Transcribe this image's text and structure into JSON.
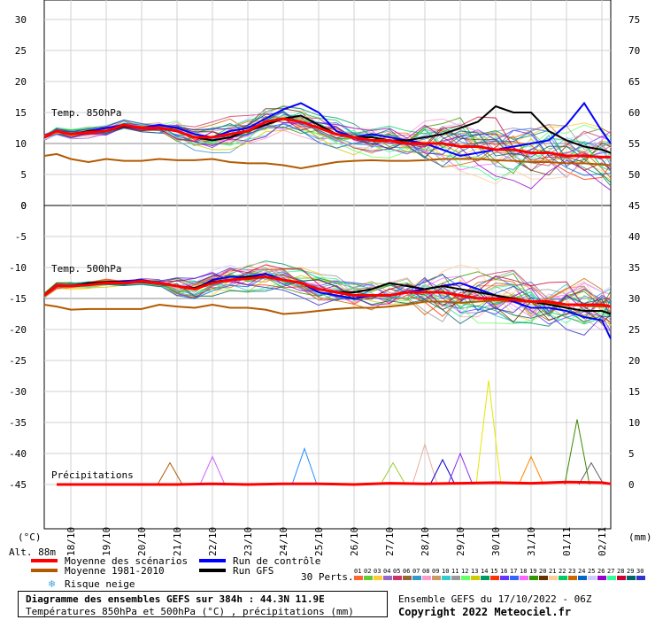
{
  "chart_data": {
    "type": "line",
    "title": "Diagramme des ensembles GEFS sur 384h : 44.3N 11.9E",
    "subtitle": "Températures 850hPa et 500hPa (°C) , précipitations (mm)",
    "run_info": "Ensemble GEFS du 17/10/2022 - 06Z",
    "copyright": "Copyright 2022 Meteociel.fr",
    "altitude": "Alt. 88m",
    "left_unit": "(°C)",
    "right_unit": "(mm)",
    "x_dates": [
      "18/10",
      "19/10",
      "20/10",
      "21/10",
      "22/10",
      "23/10",
      "24/10",
      "25/10",
      "26/10",
      "27/10",
      "28/10",
      "29/10",
      "30/10",
      "31/10",
      "01/11",
      "02/11"
    ],
    "x_range_days": [
      17.25,
      33.25
    ],
    "panels": [
      {
        "name": "Temp. 850hPa",
        "yticks_left": [
          "30",
          "25",
          "20",
          "15",
          "10",
          "5",
          "0"
        ],
        "yticks_right": [
          "75",
          "70",
          "65",
          "60",
          "55",
          "50",
          "45"
        ],
        "ylim": [
          0,
          30
        ],
        "series": [
          {
            "name": "Moyenne des scénarios",
            "color": "#ff0000",
            "x": [
              17.25,
              17.6,
              18.0,
              18.5,
              19.0,
              19.5,
              20.0,
              20.5,
              21.0,
              21.5,
              22.0,
              22.5,
              23.0,
              23.5,
              24.0,
              24.5,
              25.0,
              25.5,
              26.0,
              26.5,
              27.0,
              27.5,
              28.0,
              28.5,
              29.0,
              29.5,
              30.0,
              30.5,
              31.0,
              31.5,
              32.0,
              32.5,
              33.0,
              33.25
            ],
            "y": [
              11,
              12,
              11.5,
              11.8,
              12,
              13,
              12.5,
              12.5,
              12,
              11,
              11,
              11.5,
              12,
              13.5,
              14,
              13.5,
              12.5,
              11.5,
              11,
              10.5,
              10.5,
              10,
              10,
              10,
              9.5,
              9.5,
              9,
              9,
              8.5,
              8.5,
              8,
              8,
              7.8,
              7.8
            ]
          },
          {
            "name": "Moyenne 1981-2010",
            "color": "#b35a00",
            "x": [
              17.25,
              17.6,
              18.0,
              18.5,
              19.0,
              19.5,
              20.0,
              20.5,
              21.0,
              21.5,
              22.0,
              22.5,
              23.0,
              23.5,
              24.0,
              24.5,
              25.0,
              25.5,
              26.0,
              26.5,
              27.0,
              27.5,
              28.0,
              28.5,
              29.0,
              29.5,
              30.0,
              30.5,
              31.0,
              31.5,
              32.0,
              32.5,
              33.0,
              33.25
            ],
            "y": [
              8,
              8.3,
              7.5,
              7,
              7.5,
              7.2,
              7.2,
              7.5,
              7.3,
              7.3,
              7.5,
              7,
              6.8,
              6.8,
              6.5,
              6,
              6.5,
              7,
              7.2,
              7.3,
              7.2,
              7.2,
              7.3,
              7.5,
              7.5,
              7.5,
              7.3,
              7.2,
              7,
              7,
              6.8,
              6.8,
              6.6,
              6.5
            ]
          },
          {
            "name": "Run de contrôle",
            "color": "#0000ff",
            "x": [
              17.25,
              17.6,
              18.0,
              18.5,
              19.0,
              19.5,
              20.0,
              20.5,
              21.0,
              21.5,
              22.0,
              22.5,
              23.0,
              23.5,
              24.0,
              24.5,
              25.0,
              25.5,
              26.0,
              26.5,
              27.0,
              27.5,
              28.0,
              28.5,
              29.0,
              29.5,
              30.0,
              30.5,
              31.0,
              31.5,
              32.0,
              32.5,
              33.0,
              33.25
            ],
            "y": [
              11,
              12,
              11.5,
              12,
              12.5,
              13,
              12.5,
              13,
              12.5,
              11.5,
              11,
              12,
              12.5,
              14,
              15.5,
              16.5,
              15,
              12,
              11,
              11.5,
              11,
              10.5,
              10,
              9,
              8,
              8.5,
              9,
              9.5,
              10,
              10.5,
              13,
              16.5,
              12,
              10
            ]
          },
          {
            "name": "Run GFS",
            "color": "#000000",
            "x": [
              17.25,
              17.6,
              18.0,
              18.5,
              19.0,
              19.5,
              20.0,
              20.5,
              21.0,
              21.5,
              22.0,
              22.5,
              23.0,
              23.5,
              24.0,
              24.5,
              25.0,
              25.5,
              26.0,
              26.5,
              27.0,
              27.5,
              28.0,
              28.5,
              29.0,
              29.5,
              30.0,
              30.5,
              31.0,
              31.5,
              32.0,
              32.5,
              33.0,
              33.25
            ],
            "y": [
              11,
              12,
              11.5,
              12,
              12,
              12.8,
              12.5,
              12.5,
              12,
              11,
              10.5,
              11,
              12,
              13,
              14,
              14.5,
              13,
              11.5,
              11,
              11,
              10.5,
              10.5,
              11,
              11.5,
              12.5,
              13.5,
              16,
              15,
              15,
              12,
              10.5,
              9.5,
              9,
              8.5
            ]
          }
        ]
      },
      {
        "name": "Temp. 500hPa",
        "yticks_left": [
          "-5",
          "-10",
          "-15",
          "-20",
          "-25"
        ],
        "yticks_right": [
          "40",
          "35",
          "30",
          "25",
          "20"
        ],
        "ylim": [
          -25,
          0
        ],
        "series": [
          {
            "name": "Moyenne des scénarios",
            "color": "#ff0000",
            "x": [
              17.25,
              17.6,
              18.0,
              18.5,
              19.0,
              19.5,
              20.0,
              20.5,
              21.0,
              21.5,
              22.0,
              22.5,
              23.0,
              23.5,
              24.0,
              24.5,
              25.0,
              25.5,
              26.0,
              26.5,
              27.0,
              27.5,
              28.0,
              28.5,
              29.0,
              29.5,
              30.0,
              30.5,
              31.0,
              31.5,
              32.0,
              32.5,
              33.0,
              33.25
            ],
            "y": [
              -14.5,
              -13,
              -13,
              -12.8,
              -12.5,
              -12.5,
              -12.2,
              -12.5,
              -13,
              -13.5,
              -12.5,
              -12,
              -11.8,
              -11.5,
              -12,
              -12.5,
              -13.5,
              -14,
              -14.5,
              -14.5,
              -14.5,
              -14,
              -14,
              -14,
              -14.5,
              -15,
              -15,
              -15.2,
              -15.5,
              -15.5,
              -16,
              -16,
              -16,
              -16.3
            ]
          },
          {
            "name": "Moyenne 1981-2010",
            "color": "#b35a00",
            "x": [
              17.25,
              17.6,
              18.0,
              18.5,
              19.0,
              19.5,
              20.0,
              20.5,
              21.0,
              21.5,
              22.0,
              22.5,
              23.0,
              23.5,
              24.0,
              24.5,
              25.0,
              25.5,
              26.0,
              26.5,
              27.0,
              27.5,
              28.0,
              28.5,
              29.0,
              29.5,
              30.0,
              30.5,
              31.0,
              31.5,
              32.0,
              32.5,
              33.0,
              33.25
            ],
            "y": [
              -16,
              -16.3,
              -16.8,
              -16.7,
              -16.7,
              -16.7,
              -16.7,
              -16,
              -16.3,
              -16.5,
              -16,
              -16.5,
              -16.5,
              -16.8,
              -17.5,
              -17.3,
              -17,
              -16.7,
              -16.5,
              -16.5,
              -16.3,
              -16,
              -15.5,
              -15.5,
              -15.7,
              -15.5,
              -15.3,
              -15.5,
              -15.5,
              -15.8,
              -16,
              -16.2,
              -16.3,
              -16.3
            ]
          },
          {
            "name": "Run de contrôle",
            "color": "#0000ff",
            "x": [
              17.25,
              17.6,
              18.0,
              18.5,
              19.0,
              19.5,
              20.0,
              20.5,
              21.0,
              21.5,
              22.0,
              22.5,
              23.0,
              23.5,
              24.0,
              24.5,
              25.0,
              25.5,
              26.0,
              26.5,
              27.0,
              27.5,
              28.0,
              28.5,
              29.0,
              29.5,
              30.0,
              30.5,
              31.0,
              31.5,
              32.0,
              32.5,
              33.0,
              33.25
            ],
            "y": [
              -14.5,
              -13,
              -13,
              -12.5,
              -12.5,
              -12.2,
              -12,
              -12.5,
              -13,
              -13.5,
              -12,
              -11.5,
              -11.5,
              -11,
              -12,
              -12.5,
              -14,
              -14.5,
              -15,
              -14.5,
              -14.5,
              -14,
              -13.5,
              -13,
              -12.5,
              -13.5,
              -14.5,
              -15.5,
              -16.5,
              -16.5,
              -17,
              -18,
              -18.5,
              -21.5
            ]
          },
          {
            "name": "Run GFS",
            "color": "#000000",
            "x": [
              17.25,
              17.6,
              18.0,
              18.5,
              19.0,
              19.5,
              20.0,
              20.5,
              21.0,
              21.5,
              22.0,
              22.5,
              23.0,
              23.5,
              24.0,
              24.5,
              25.0,
              25.5,
              26.0,
              26.5,
              27.0,
              27.5,
              28.0,
              28.5,
              29.0,
              29.5,
              30.0,
              30.5,
              31.0,
              31.5,
              32.0,
              32.5,
              33.0,
              33.25
            ],
            "y": [
              -14.5,
              -13,
              -13,
              -12.5,
              -12.3,
              -12.3,
              -12.3,
              -12.5,
              -13,
              -13.3,
              -12.3,
              -12,
              -11.5,
              -11.5,
              -12,
              -12.5,
              -13.5,
              -14,
              -14,
              -13.5,
              -12.5,
              -13,
              -13.5,
              -13,
              -13.5,
              -14,
              -14.5,
              -15,
              -15.5,
              -16,
              -16.5,
              -17,
              -17,
              -17.5
            ]
          }
        ]
      },
      {
        "name": "Précipitations",
        "yticks_left": [
          "-30",
          "-35",
          "-40",
          "-45"
        ],
        "yticks_right": [
          "15",
          "10",
          "5",
          "0"
        ],
        "ylim_mm": [
          0,
          15
        ],
        "series": [
          {
            "name": "Moyenne des scénarios",
            "color": "#ff0000",
            "x": [
              17.6,
              21.0,
              22.0,
              23.0,
              24.0,
              25.0,
              26.0,
              27.0,
              28.0,
              29.0,
              30.0,
              31.0,
              32.0,
              33.0,
              33.25
            ],
            "y": [
              0,
              0,
              0.1,
              0,
              0.1,
              0.1,
              0,
              0.2,
              0.1,
              0.2,
              0.3,
              0.2,
              0.4,
              0.3,
              0.1
            ]
          }
        ],
        "peaks": [
          {
            "x": 20.8,
            "y": 3.5,
            "color": "#b35a00"
          },
          {
            "x": 22.0,
            "y": 4.5,
            "color": "#cc66ff"
          },
          {
            "x": 24.6,
            "y": 5.8,
            "color": "#1e90ff"
          },
          {
            "x": 27.1,
            "y": 3.5,
            "color": "#9acd32"
          },
          {
            "x": 28.0,
            "y": 6.5,
            "color": "#e8b0a0"
          },
          {
            "x": 28.5,
            "y": 4.0,
            "color": "#0000cc"
          },
          {
            "x": 29.0,
            "y": 5.0,
            "color": "#8a2be2"
          },
          {
            "x": 29.8,
            "y": 16.8,
            "color": "#e6e600"
          },
          {
            "x": 31.0,
            "y": 4.5,
            "color": "#ff8800"
          },
          {
            "x": 32.3,
            "y": 10.5,
            "color": "#3a8a00"
          },
          {
            "x": 32.7,
            "y": 3.5,
            "color": "#606060"
          }
        ]
      }
    ],
    "legend": [
      {
        "label": "Moyenne des scénarios",
        "color": "#ff0000"
      },
      {
        "label": "Moyenne 1981-2010",
        "color": "#b35a00"
      },
      {
        "label": "Run de contrôle",
        "color": "#0000ff"
      },
      {
        "label": "Run GFS",
        "color": "#000000"
      },
      {
        "label": "Risque neige",
        "color": "#4aa3e0"
      }
    ],
    "perts_label": "30 Perts.",
    "perts": [
      {
        "label": "01",
        "color": "#ff6633"
      },
      {
        "label": "02",
        "color": "#66cc33"
      },
      {
        "label": "03",
        "color": "#ffcc33"
      },
      {
        "label": "04",
        "color": "#9966cc"
      },
      {
        "label": "05",
        "color": "#cc3366"
      },
      {
        "label": "06",
        "color": "#996633"
      },
      {
        "label": "07",
        "color": "#3399cc"
      },
      {
        "label": "08",
        "color": "#ff99cc"
      },
      {
        "label": "09",
        "color": "#cc9966"
      },
      {
        "label": "10",
        "color": "#33cccc"
      },
      {
        "label": "11",
        "color": "#999999"
      },
      {
        "label": "12",
        "color": "#66ff66"
      },
      {
        "label": "13",
        "color": "#cccc00"
      },
      {
        "label": "14",
        "color": "#009966"
      },
      {
        "label": "15",
        "color": "#ff3300"
      },
      {
        "label": "16",
        "color": "#6633ff"
      },
      {
        "label": "17",
        "color": "#3366ff"
      },
      {
        "label": "18",
        "color": "#ff66ff"
      },
      {
        "label": "19",
        "color": "#339900"
      },
      {
        "label": "20",
        "color": "#663300"
      },
      {
        "label": "21",
        "color": "#ffcc99"
      },
      {
        "label": "22",
        "color": "#00cc66"
      },
      {
        "label": "23",
        "color": "#cc6600"
      },
      {
        "label": "24",
        "color": "#0066cc"
      },
      {
        "label": "25",
        "color": "#ccccff"
      },
      {
        "label": "26",
        "color": "#9900cc"
      },
      {
        "label": "27",
        "color": "#33ff99"
      },
      {
        "label": "28",
        "color": "#cc0033"
      },
      {
        "label": "29",
        "color": "#006666"
      },
      {
        "label": "30",
        "color": "#3333cc"
      }
    ]
  }
}
